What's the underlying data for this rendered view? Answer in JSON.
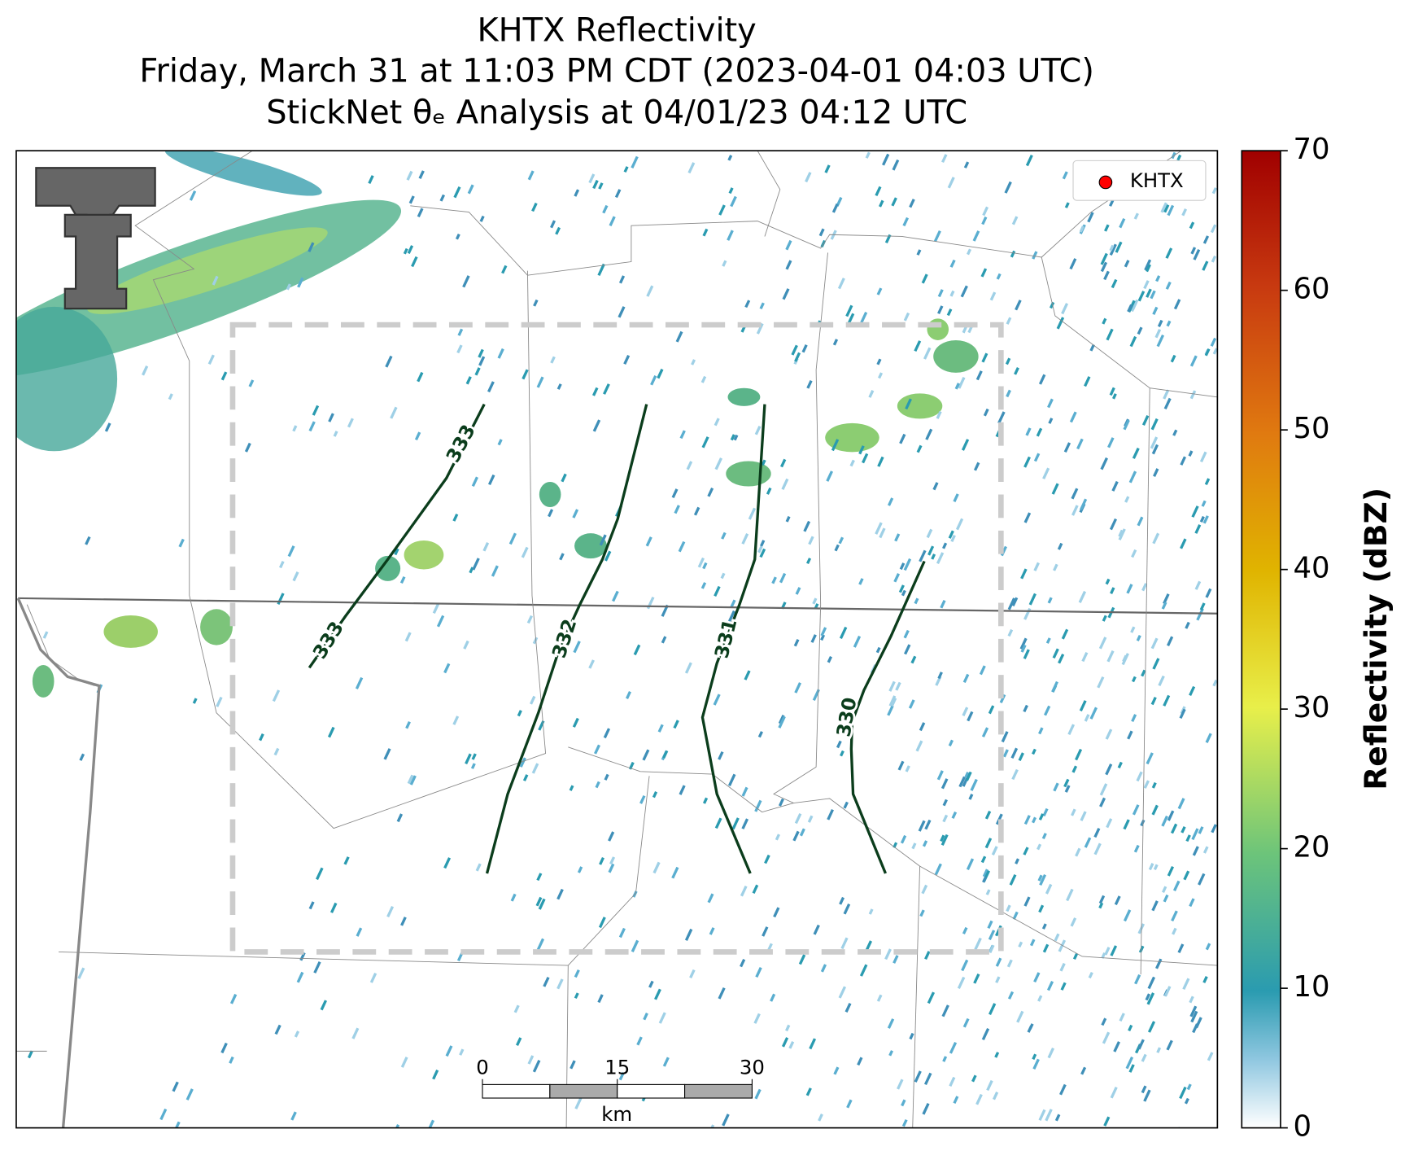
{
  "title": [
    "KHTX Reflectivity",
    "Friday, March 31 at 11:03 PM CDT (2023-04-01 04:03 UTC)",
    "StickNet θₑ Analysis at 04/01/23 04:12 UTC"
  ],
  "legend": {
    "label": "KHTX"
  },
  "colorbar": {
    "label": "Reflectivity (dBZ)",
    "lim": [
      0,
      70
    ],
    "ticks": [
      0,
      10,
      20,
      30,
      40,
      50,
      60,
      70
    ]
  },
  "contours": [
    333,
    333,
    332,
    331,
    330
  ],
  "scalebar": {
    "ticks": [
      0,
      15,
      30
    ],
    "unit": "km"
  }
}
